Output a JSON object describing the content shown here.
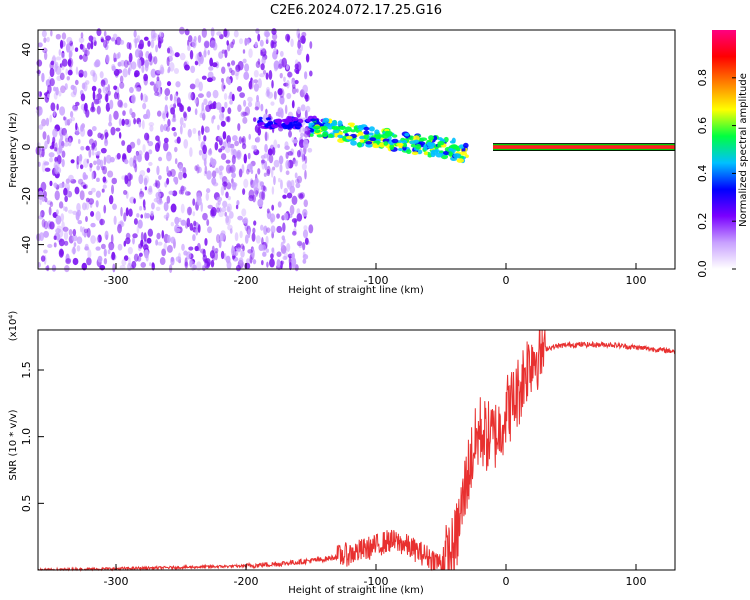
{
  "title": "C2E6.2024.072.17.25.G16",
  "chart_data": [
    {
      "type": "heatmap",
      "xlabel": "Height of straight line (km)",
      "ylabel": "Frequency (Hz)",
      "xlim": [
        -360,
        130
      ],
      "ylim": [
        -50,
        48
      ],
      "xticks": [
        -300,
        -200,
        -100,
        0,
        100
      ],
      "yticks": [
        -40,
        -20,
        0,
        20,
        40
      ],
      "colorbar": {
        "label": "Normalized spectral amplitude",
        "range": [
          0,
          1
        ],
        "ticks": [
          "0.0",
          "0.2",
          "0.4",
          "0.6",
          "0.8"
        ],
        "colors": [
          "#ffffff",
          "#c8a0ff",
          "#7a00ff",
          "#0000ff",
          "#00c0ff",
          "#00ff40",
          "#ffff00",
          "#ff8000",
          "#ff0000",
          "#ff0080"
        ]
      },
      "features": [
        {
          "x_range": [
            -360,
            -150
          ],
          "freq_range": [
            -50,
            48
          ],
          "amplitude": 0.05
        },
        {
          "x_range": [
            -190,
            -140
          ],
          "freq_center": 10,
          "amplitude": 0.3
        },
        {
          "x_range": [
            -150,
            -30
          ],
          "freq_start": 8,
          "freq_end": -2,
          "amplitude": 0.45
        },
        {
          "x_range": [
            -10,
            130
          ],
          "freq_center": 0,
          "amplitude": 0.9
        }
      ]
    },
    {
      "type": "line",
      "xlabel": "Height of straight line (km)",
      "ylabel": "SNR (10 * v/v)",
      "multiplier": "(x10⁴)",
      "xlim": [
        -360,
        130
      ],
      "ylim": [
        0,
        1.8
      ],
      "xticks": [
        -300,
        -200,
        -100,
        0,
        100
      ],
      "yticks": [
        0.5,
        1.0,
        1.5
      ],
      "ytick_labels": [
        "0.5",
        "1.0",
        "1.5"
      ],
      "color": "#e8302f",
      "series": [
        {
          "x": [
            -360,
            -300,
            -250,
            -200,
            -170,
            -140,
            -120,
            -100,
            -90,
            -80,
            -70,
            -60,
            -50,
            -45,
            -40,
            -35,
            -30,
            -25,
            -20,
            -15,
            -10,
            -5,
            0,
            5,
            10,
            15,
            20,
            25,
            30,
            40,
            50,
            60,
            70,
            80,
            90,
            100,
            110,
            120,
            130
          ],
          "values": [
            0.0,
            0.01,
            0.02,
            0.03,
            0.05,
            0.08,
            0.12,
            0.18,
            0.22,
            0.2,
            0.15,
            0.1,
            0.05,
            0.08,
            0.15,
            0.4,
            0.7,
            0.9,
            1.05,
            1.0,
            1.0,
            1.05,
            1.2,
            1.25,
            1.35,
            1.5,
            1.6,
            1.63,
            1.66,
            1.68,
            1.69,
            1.69,
            1.69,
            1.69,
            1.68,
            1.67,
            1.66,
            1.65,
            1.64
          ]
        }
      ]
    }
  ]
}
